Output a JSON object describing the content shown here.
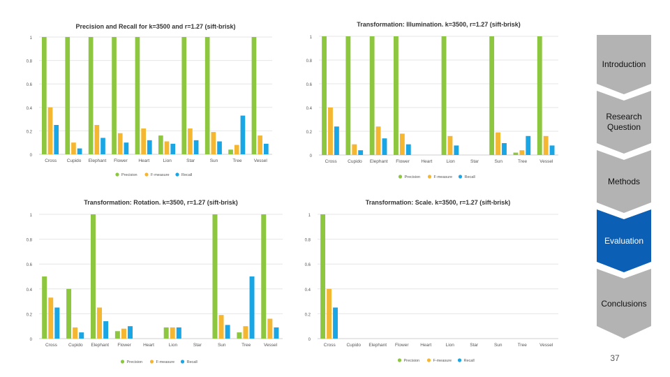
{
  "chart_data": [
    {
      "type": "bar",
      "title": "Precision and Recall for k=3500 and r=1.27 (sift-brisk)",
      "categories": [
        "Cross",
        "Cupido",
        "Elephant",
        "Flower",
        "Heart",
        "Lion",
        "Star",
        "Sun",
        "Tree",
        "Vessel"
      ],
      "ylim": [
        0,
        1
      ],
      "yticks": [
        "0",
        "0.2",
        "0.4",
        "0.6",
        "0.8",
        "1"
      ],
      "series": [
        {
          "name": "Precision",
          "color": "#8dc63f",
          "values": [
            1,
            1,
            1,
            1,
            1,
            0.16,
            1,
            1,
            0.04,
            1
          ]
        },
        {
          "name": "F-measure",
          "color": "#f5b731",
          "values": [
            0.4,
            0.1,
            0.25,
            0.18,
            0.22,
            0.11,
            0.22,
            0.19,
            0.08,
            0.16
          ]
        },
        {
          "name": "Recall",
          "color": "#1aa6e4",
          "values": [
            0.25,
            0.05,
            0.14,
            0.1,
            0.12,
            0.09,
            0.12,
            0.11,
            0.33,
            0.09
          ]
        }
      ]
    },
    {
      "type": "bar",
      "title": "Transformation: Illumination. k=3500, r=1.27 (sift-brisk)",
      "categories": [
        "Cross",
        "Cupido",
        "Elephant",
        "Flower",
        "Heart",
        "Lion",
        "Star",
        "Sun",
        "Tree",
        "Vessel"
      ],
      "ylim": [
        0,
        1
      ],
      "yticks": [
        "0",
        "0.2",
        "0.4",
        "0.6",
        "0.8",
        "1"
      ],
      "series": [
        {
          "name": "Precision",
          "color": "#8dc63f",
          "values": [
            1,
            1,
            1,
            1,
            0,
            1,
            0,
            1,
            0.02,
            1
          ]
        },
        {
          "name": "F-measure",
          "color": "#f5b731",
          "values": [
            0.4,
            0.09,
            0.24,
            0.18,
            0,
            0.16,
            0,
            0.19,
            0.04,
            0.16
          ]
        },
        {
          "name": "Recall",
          "color": "#1aa6e4",
          "values": [
            0.24,
            0.04,
            0.14,
            0.09,
            0,
            0.08,
            0,
            0.1,
            0.16,
            0.08
          ]
        }
      ]
    },
    {
      "type": "bar",
      "title": "Transformation: Rotation. k=3500, r=1.27 (sift-brisk)",
      "categories": [
        "Cross",
        "Cupido",
        "Elephant",
        "Flower",
        "Heart",
        "Lion",
        "Star",
        "Sun",
        "Tree",
        "Vessel"
      ],
      "ylim": [
        0,
        1
      ],
      "yticks": [
        "0",
        "0.2",
        "0.4",
        "0.6",
        "0.8",
        "1"
      ],
      "series": [
        {
          "name": "Precision",
          "color": "#8dc63f",
          "values": [
            0.5,
            0.4,
            1,
            0.06,
            0,
            0.09,
            0,
            1,
            0.05,
            1
          ]
        },
        {
          "name": "F-measure",
          "color": "#f5b731",
          "values": [
            0.33,
            0.09,
            0.25,
            0.08,
            0,
            0.09,
            0,
            0.19,
            0.1,
            0.16
          ]
        },
        {
          "name": "Recall",
          "color": "#1aa6e4",
          "values": [
            0.25,
            0.05,
            0.14,
            0.1,
            0,
            0.09,
            0,
            0.11,
            0.5,
            0.09
          ]
        }
      ]
    },
    {
      "type": "bar",
      "title": "Transformation: Scale. k=3500, r=1.27 (sift-brisk)",
      "categories": [
        "Cross",
        "Cupido",
        "Elephant",
        "Flower",
        "Heart",
        "Lion",
        "Star",
        "Sun",
        "Tree",
        "Vessel"
      ],
      "ylim": [
        0,
        1
      ],
      "yticks": [
        "0",
        "0.2",
        "0.4",
        "0.6",
        "0.8",
        "1"
      ],
      "series": [
        {
          "name": "Precision",
          "color": "#8dc63f",
          "values": [
            1,
            0,
            0,
            0,
            0,
            0,
            0,
            0,
            0,
            0
          ]
        },
        {
          "name": "F-measure",
          "color": "#f5b731",
          "values": [
            0.4,
            0,
            0,
            0,
            0,
            0,
            0,
            0,
            0,
            0
          ]
        },
        {
          "name": "Recall",
          "color": "#1aa6e4",
          "values": [
            0.25,
            0,
            0,
            0,
            0,
            0,
            0,
            0,
            0,
            0
          ]
        }
      ]
    }
  ],
  "nav": {
    "items": [
      {
        "label": "Introduction",
        "active": false
      },
      {
        "label": "Research Question",
        "active": false
      },
      {
        "label": "Methods",
        "active": false
      },
      {
        "label": "Evaluation",
        "active": true
      },
      {
        "label": "Conclusions",
        "active": false
      }
    ],
    "colors": {
      "inactive": "#b3b3b3",
      "active": "#0b5fb4",
      "shadow": "#9a9a9a"
    }
  },
  "page_number": "37"
}
